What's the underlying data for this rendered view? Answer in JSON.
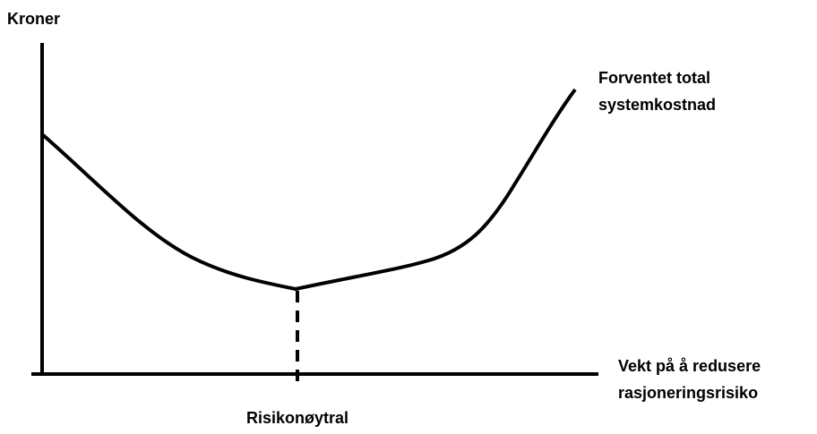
{
  "y_axis_label": "Kroner",
  "curve_label": [
    "Forventet total",
    "systemkostnad"
  ],
  "x_axis_label": [
    "Vekt på å redusere",
    "rasjoneringsrisiko"
  ],
  "marker_label": "Risikonøytral"
}
